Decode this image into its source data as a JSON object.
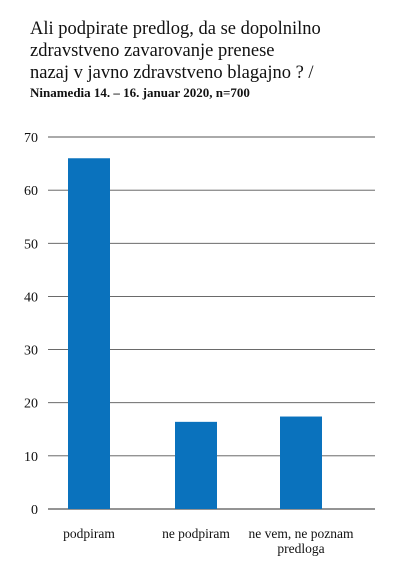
{
  "chart_data": {
    "type": "bar",
    "title": "Ali podpirate predlog, da se dopolnilno zdravstveno zavarovanje prenese nazaj v javno zdravstveno blagajno ? /",
    "title_lines": [
      "Ali podpirate predlog, da se dopolnilno",
      "zdravstveno zavarovanje prenese",
      "nazaj v javno zdravstveno blagajno ? /"
    ],
    "subtitle": "Ninamedia 14. – 16. januar 2020, n=700",
    "categories": [
      [
        "podpiram"
      ],
      [
        "ne podpiram"
      ],
      [
        "ne vem, ne poznam",
        "predloga"
      ]
    ],
    "values": [
      66,
      16.4,
      17.4
    ],
    "ylim": [
      0,
      70
    ],
    "yticks": [
      0,
      10,
      20,
      30,
      40,
      50,
      60,
      70
    ],
    "grid": true,
    "bar_color": "#0a72bd",
    "grid_color": "#555555",
    "xlabel": "",
    "ylabel": ""
  }
}
